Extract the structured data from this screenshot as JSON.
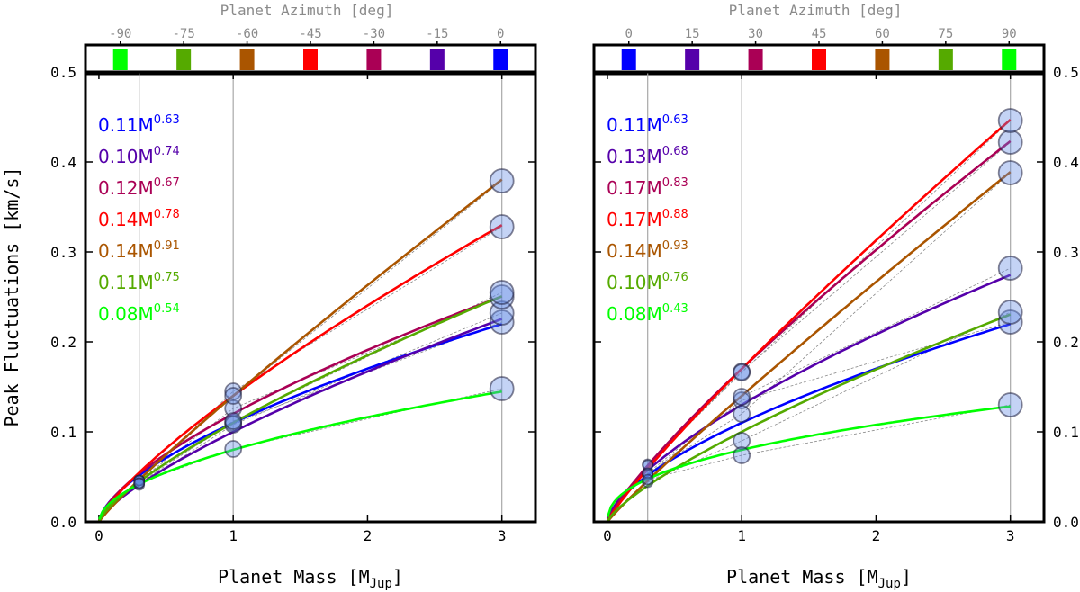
{
  "figure": {
    "ylabel": "Peak Fluctuations [km/s]",
    "xlabel_main": "Planet Mass [M",
    "xlabel_sub": "Jup",
    "xlabel_end": "]",
    "top_label": "Planet Azimuth [deg]"
  },
  "chart_data": [
    {
      "type": "line",
      "panel": "left",
      "xlim": [
        -0.1,
        3.25
      ],
      "ylim": [
        0,
        0.5
      ],
      "x_ticks": [
        0,
        1,
        2,
        3
      ],
      "y_ticks": [
        0.0,
        0.1,
        0.2,
        0.3,
        0.4,
        0.5
      ],
      "y_tick_labels": [
        "0.0",
        "0.1",
        "0.2",
        "0.3",
        "0.4",
        "0.5"
      ],
      "y_axis_side": "left",
      "grid": false,
      "vertical_reference_lines": [
        0.3,
        1,
        3
      ],
      "azimuth_bar": {
        "ticks": [
          "-90",
          "-75",
          "-60",
          "-45",
          "-30",
          "-15",
          "0"
        ],
        "colors": [
          "#00ff00",
          "#55aa00",
          "#aa5500",
          "#ff0000",
          "#aa0055",
          "#5500aa",
          "#0000ff"
        ]
      },
      "fit_labels": [
        {
          "coef": "0.11M",
          "exp": "0.63",
          "color": "#0000ff"
        },
        {
          "coef": "0.10M",
          "exp": "0.74",
          "color": "#5500aa"
        },
        {
          "coef": "0.12M",
          "exp": "0.67",
          "color": "#aa0055"
        },
        {
          "coef": "0.14M",
          "exp": "0.78",
          "color": "#ff0000"
        },
        {
          "coef": "0.14M",
          "exp": "0.91",
          "color": "#aa5500"
        },
        {
          "coef": "0.11M",
          "exp": "0.75",
          "color": "#55aa00"
        },
        {
          "coef": "0.08M",
          "exp": "0.54",
          "color": "#00ff00"
        }
      ],
      "series": [
        {
          "azimuth": 0,
          "color": "#0000ff",
          "a": 0.11,
          "b": 0.63,
          "points": [
            [
              0.3,
              0.046
            ],
            [
              1,
              0.11
            ],
            [
              3,
              0.222
            ]
          ]
        },
        {
          "azimuth": -15,
          "color": "#5500aa",
          "a": 0.1,
          "b": 0.74,
          "points": [
            [
              0.3,
              0.041
            ],
            [
              1,
              0.108
            ],
            [
              3,
              0.232
            ]
          ]
        },
        {
          "azimuth": -30,
          "color": "#aa0055",
          "a": 0.12,
          "b": 0.67,
          "points": [
            [
              0.3,
              0.046
            ],
            [
              1,
              0.126
            ],
            [
              3,
              0.25
            ]
          ]
        },
        {
          "azimuth": -45,
          "color": "#ff0000",
          "a": 0.14,
          "b": 0.78,
          "points": [
            [
              0.3,
              0.046
            ],
            [
              1,
              0.145
            ],
            [
              3,
              0.328
            ]
          ]
        },
        {
          "azimuth": -60,
          "color": "#aa5500",
          "a": 0.14,
          "b": 0.91,
          "points": [
            [
              0.3,
              0.046
            ],
            [
              1,
              0.14
            ],
            [
              3,
              0.379
            ]
          ]
        },
        {
          "azimuth": -75,
          "color": "#55aa00",
          "a": 0.11,
          "b": 0.75,
          "points": [
            [
              0.3,
              0.043
            ],
            [
              1,
              0.112
            ],
            [
              3,
              0.255
            ]
          ]
        },
        {
          "azimuth": -90,
          "color": "#00ff00",
          "a": 0.08,
          "b": 0.54,
          "points": [
            [
              0.3,
              0.043
            ],
            [
              1,
              0.081
            ],
            [
              3,
              0.148
            ]
          ]
        }
      ]
    },
    {
      "type": "line",
      "panel": "right",
      "xlim": [
        -0.1,
        3.25
      ],
      "ylim": [
        0,
        0.5
      ],
      "x_ticks": [
        0,
        1,
        2,
        3
      ],
      "y_ticks": [
        0.0,
        0.1,
        0.2,
        0.3,
        0.4,
        0.5
      ],
      "y_tick_labels": [
        "0.0",
        "0.1",
        "0.2",
        "0.3",
        "0.4",
        "0.5"
      ],
      "y_axis_side": "right",
      "grid": false,
      "vertical_reference_lines": [
        0.3,
        1,
        3
      ],
      "azimuth_bar": {
        "ticks": [
          "0",
          "15",
          "30",
          "45",
          "60",
          "75",
          "90"
        ],
        "colors": [
          "#0000ff",
          "#5500aa",
          "#aa0055",
          "#ff0000",
          "#aa5500",
          "#55aa00",
          "#00ff00"
        ]
      },
      "fit_labels": [
        {
          "coef": "0.11M",
          "exp": "0.63",
          "color": "#0000ff"
        },
        {
          "coef": "0.13M",
          "exp": "0.68",
          "color": "#5500aa"
        },
        {
          "coef": "0.17M",
          "exp": "0.83",
          "color": "#aa0055"
        },
        {
          "coef": "0.17M",
          "exp": "0.88",
          "color": "#ff0000"
        },
        {
          "coef": "0.14M",
          "exp": "0.93",
          "color": "#aa5500"
        },
        {
          "coef": "0.10M",
          "exp": "0.76",
          "color": "#55aa00"
        },
        {
          "coef": "0.08M",
          "exp": "0.43",
          "color": "#00ff00"
        }
      ],
      "series": [
        {
          "azimuth": 0,
          "color": "#0000ff",
          "a": 0.11,
          "b": 0.63,
          "points": [
            [
              0.3,
              0.052
            ],
            [
              1,
              0.135
            ],
            [
              3,
              0.222
            ]
          ]
        },
        {
          "azimuth": 15,
          "color": "#5500aa",
          "a": 0.13,
          "b": 0.68,
          "points": [
            [
              0.3,
              0.054
            ],
            [
              1,
              0.139
            ],
            [
              3,
              0.282
            ]
          ]
        },
        {
          "azimuth": 30,
          "color": "#aa0055",
          "a": 0.17,
          "b": 0.83,
          "points": [
            [
              0.3,
              0.064
            ],
            [
              1,
              0.167
            ],
            [
              3,
              0.422
            ]
          ]
        },
        {
          "azimuth": 45,
          "color": "#ff0000",
          "a": 0.17,
          "b": 0.88,
          "points": [
            [
              0.3,
              0.063
            ],
            [
              1,
              0.166
            ],
            [
              3,
              0.446
            ]
          ]
        },
        {
          "azimuth": 60,
          "color": "#aa5500",
          "a": 0.14,
          "b": 0.93,
          "points": [
            [
              0.3,
              0.054
            ],
            [
              1,
              0.12
            ],
            [
              3,
              0.388
            ]
          ]
        },
        {
          "azimuth": 75,
          "color": "#55aa00",
          "a": 0.1,
          "b": 0.76,
          "points": [
            [
              0.3,
              0.044
            ],
            [
              1,
              0.09
            ],
            [
              3,
              0.233
            ]
          ]
        },
        {
          "azimuth": 90,
          "color": "#00ff00",
          "a": 0.08,
          "b": 0.43,
          "points": [
            [
              0.3,
              0.047
            ],
            [
              1,
              0.074
            ],
            [
              3,
              0.13
            ]
          ]
        }
      ]
    }
  ]
}
